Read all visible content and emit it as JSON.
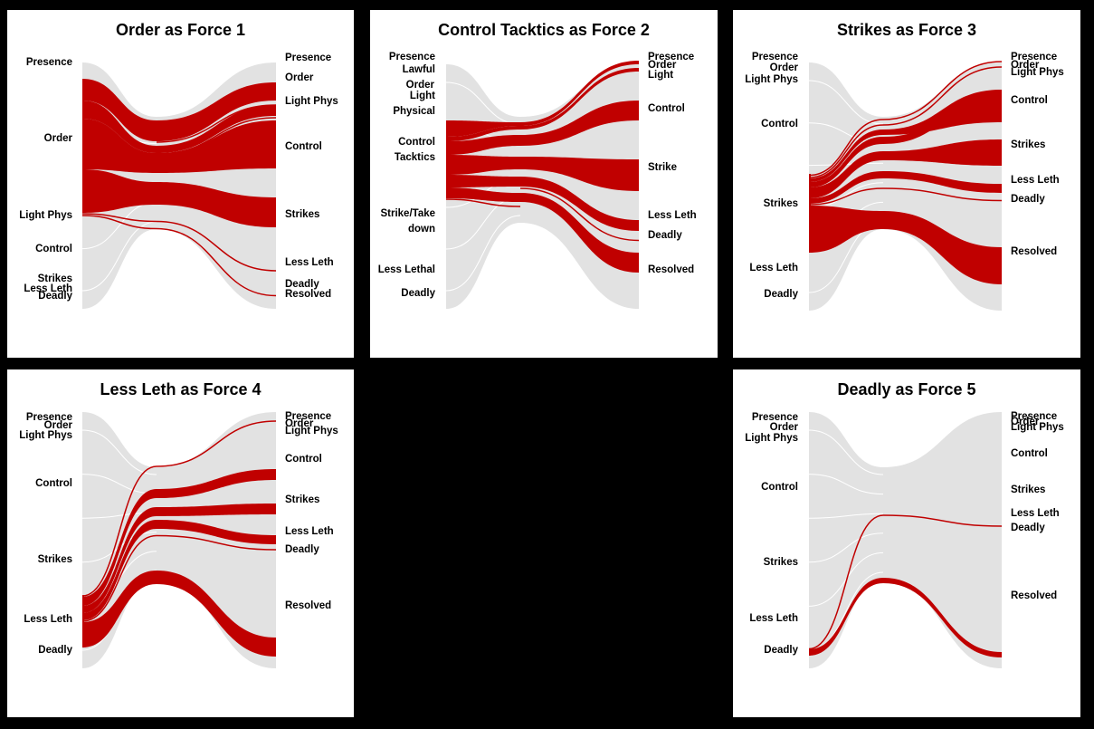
{
  "colors": {
    "highlight": "#c00000",
    "background_flow": "#e2e2e2",
    "panel_bg": "#ffffff",
    "page_bg": "#000000"
  },
  "chart_data": [
    {
      "type": "sankey",
      "title": "Order as Force 1",
      "left_labels": [
        "Presence",
        "Order",
        "Light Phys",
        "Control",
        "Strikes",
        "Less Leth",
        "Deadly"
      ],
      "right_labels": [
        "Presence",
        "Order",
        "Light Phys",
        "Control",
        "Strikes",
        "Less Leth",
        "Deadly",
        "Resolved"
      ],
      "highlighted_left": "Order"
    },
    {
      "type": "sankey",
      "title": "Control Tacktics as Force 2",
      "left_labels": [
        "Presence",
        "Lawful",
        "Order",
        "Light Physical",
        "Control Tacktics",
        "Strike/Take down",
        "Less Lethal",
        "Deadly"
      ],
      "right_labels": [
        "Presence",
        "Order",
        "Light",
        "Control",
        "Strike",
        "Less Leth",
        "Deadly",
        "Resolved"
      ],
      "highlighted_left": "Control Tacktics"
    },
    {
      "type": "sankey",
      "title": "Strikes as Force 3",
      "left_labels": [
        "Presence",
        "Order",
        "Light Phys",
        "Control",
        "Strikes",
        "Less Leth",
        "Deadly"
      ],
      "right_labels": [
        "Presence",
        "Order",
        "Light Phys",
        "Control",
        "Strikes",
        "Less Leth",
        "Deadly",
        "Resolved"
      ],
      "highlighted_left": "Strikes"
    },
    {
      "type": "sankey",
      "title": "Less Leth as Force 4",
      "left_labels": [
        "Presence",
        "Order",
        "Light Phys",
        "Control",
        "Strikes",
        "Less Leth",
        "Deadly"
      ],
      "right_labels": [
        "Presence",
        "Order",
        "Light Phys",
        "Control",
        "Strikes",
        "Less Leth",
        "Deadly",
        "Resolved"
      ],
      "highlighted_left": "Less Leth"
    },
    {
      "type": "sankey",
      "title": "Deadly as Force 5",
      "left_labels": [
        "Presence",
        "Order",
        "Light Phys",
        "Control",
        "Strikes",
        "Less Leth",
        "Deadly"
      ],
      "right_labels": [
        "Presence",
        "Order",
        "Light Phys",
        "Control",
        "Strikes",
        "Less Leth",
        "Deadly",
        "Resolved"
      ],
      "highlighted_left": "Deadly"
    }
  ]
}
